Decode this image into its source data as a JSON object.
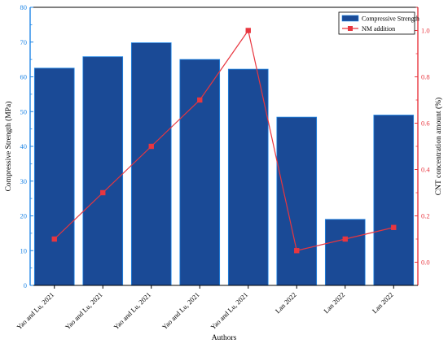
{
  "chart_data": {
    "type": "bar",
    "categories": [
      "Yao and Lu, 2021",
      "Yao and Lu, 2021",
      "Yao and Lu, 2021",
      "Yao and Lu, 2021",
      "Yao and Lu, 2021",
      "Lan 2022",
      "Lan 2022",
      "Lan 2022"
    ],
    "xlabel": "Authors",
    "ylabel_left": "Compressive Strength (MPa)",
    "ylabel_right": "CNT concentration amount (%)",
    "ylim_left": [
      0,
      80
    ],
    "yticks_left": [
      "0",
      "10",
      "20",
      "30",
      "40",
      "50",
      "60",
      "70",
      "80"
    ],
    "ylim_right": [
      -0.1,
      1.1
    ],
    "yticks_right": [
      "0.0",
      "0.2",
      "0.4",
      "0.6",
      "0.8",
      "1.0"
    ],
    "grid": false,
    "legend_position": "top-right",
    "series": [
      {
        "name": "Compressive Strength",
        "kind": "bar",
        "axis": "left",
        "color": "#1a4a96",
        "values": [
          62.5,
          65.8,
          69.8,
          65.0,
          62.2,
          48.4,
          19.0,
          49.0
        ]
      },
      {
        "name": "NM addition",
        "kind": "line",
        "axis": "right",
        "color": "#e8363f",
        "values": [
          0.1,
          0.3,
          0.5,
          0.7,
          1.0,
          0.05,
          0.1,
          0.15
        ]
      }
    ],
    "colors": {
      "left_axis": "#1f86e6",
      "right_axis": "#e8363f",
      "bar_border": "#1f86e6"
    }
  }
}
